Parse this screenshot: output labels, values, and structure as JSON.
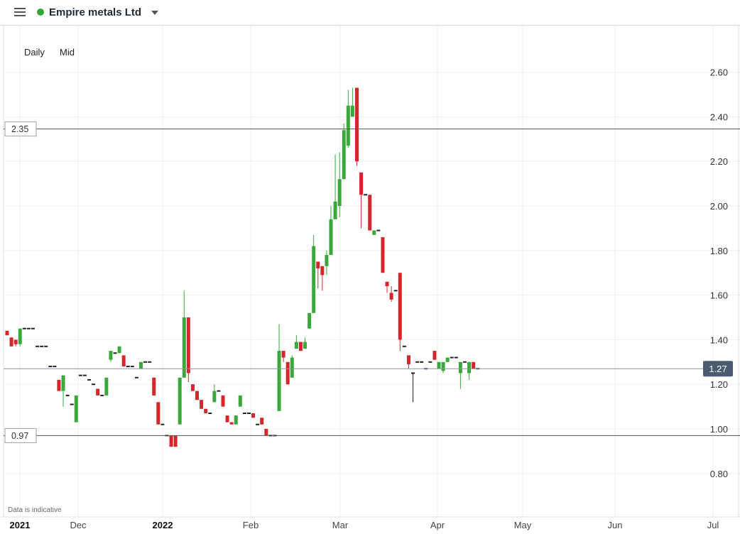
{
  "header": {
    "instrument_name": "Empire metals Ltd",
    "status_color": "#2fa832"
  },
  "controls": {
    "interval": "Daily",
    "price_type": "Mid"
  },
  "footer_note": "Data is indicative",
  "colors": {
    "up": "#3aa83b",
    "down": "#d6262b",
    "current_price_bg": "#4a5b70"
  },
  "chart_data": {
    "type": "candlestick",
    "y_axis": {
      "range": [
        0.63,
        2.76
      ],
      "ticks": [
        "0.80",
        "1.00",
        "1.20",
        "1.40",
        "1.60",
        "1.80",
        "2.00",
        "2.20",
        "2.40",
        "2.60"
      ]
    },
    "x_axis": {
      "ticks": [
        "2021",
        "Dec",
        "2022",
        "Feb",
        "Mar",
        "Apr",
        "May",
        "Jun",
        "Jul"
      ]
    },
    "grid": true,
    "horizontal_lines": [
      {
        "label": "2.35",
        "value": 2.345
      },
      {
        "label": "0.97",
        "value": 0.97
      }
    ],
    "current_price": {
      "label": "1.27",
      "value": 1.27
    },
    "candles": [
      [
        1.44,
        1.42,
        1.44,
        1.42
      ],
      [
        1.41,
        1.37,
        1.41,
        1.37
      ],
      [
        1.4,
        1.38,
        1.4,
        1.37
      ],
      [
        1.38,
        1.45,
        1.45,
        1.37
      ],
      [
        1.45,
        1.45,
        1.45,
        1.45
      ],
      [
        1.45,
        1.45,
        1.45,
        1.45
      ],
      [
        1.45,
        1.45,
        1.45,
        1.45
      ],
      [
        1.37,
        1.37,
        1.37,
        1.37
      ],
      [
        1.37,
        1.37,
        1.37,
        1.37
      ],
      [
        1.37,
        1.37,
        1.37,
        1.37
      ],
      [
        1.28,
        1.28,
        1.28,
        1.28
      ],
      [
        1.28,
        1.28,
        1.28,
        1.28
      ],
      [
        1.22,
        1.17,
        1.22,
        1.17
      ],
      [
        1.17,
        1.24,
        1.24,
        1.1
      ],
      [
        1.15,
        1.15,
        1.15,
        1.15
      ],
      [
        1.11,
        1.11,
        1.11,
        1.11
      ],
      [
        1.03,
        1.15,
        1.15,
        1.03
      ],
      [
        1.24,
        1.24,
        1.24,
        1.24
      ],
      [
        1.24,
        1.24,
        1.24,
        1.24
      ],
      [
        1.22,
        1.22,
        1.22,
        1.22
      ],
      [
        1.2,
        1.2,
        1.2,
        1.2
      ],
      [
        1.18,
        1.15,
        1.18,
        1.15
      ],
      [
        1.15,
        1.15,
        1.15,
        1.15
      ],
      [
        1.15,
        1.23,
        1.23,
        1.15
      ],
      [
        1.31,
        1.35,
        1.35,
        1.3
      ],
      [
        1.34,
        1.34,
        1.34,
        1.34
      ],
      [
        1.34,
        1.37,
        1.37,
        1.34
      ],
      [
        1.33,
        1.28,
        1.33,
        1.28
      ],
      [
        1.28,
        1.28,
        1.28,
        1.28
      ],
      [
        1.28,
        1.28,
        1.28,
        1.28
      ],
      [
        1.23,
        1.23,
        1.23,
        1.23
      ],
      [
        1.27,
        1.3,
        1.3,
        1.27
      ],
      [
        1.3,
        1.3,
        1.3,
        1.3
      ],
      [
        1.3,
        1.3,
        1.3,
        1.3
      ],
      [
        1.23,
        1.15,
        1.23,
        1.15
      ],
      [
        1.12,
        1.02,
        1.12,
        1.02
      ],
      [
        1.02,
        1.02,
        1.02,
        1.02
      ],
      [
        0.97,
        0.97,
        0.97,
        0.97
      ],
      [
        0.97,
        0.92,
        0.97,
        0.92
      ],
      [
        0.97,
        0.92,
        0.97,
        0.92
      ],
      [
        1.02,
        1.23,
        1.23,
        1.02
      ],
      [
        1.23,
        1.5,
        1.62,
        1.23
      ],
      [
        1.5,
        1.25,
        1.5,
        1.21
      ],
      [
        1.2,
        1.17,
        1.2,
        1.17
      ],
      [
        1.17,
        1.13,
        1.17,
        1.13
      ],
      [
        1.13,
        1.09,
        1.13,
        1.09
      ],
      [
        1.09,
        1.07,
        1.09,
        1.07
      ],
      [
        1.07,
        1.07,
        1.07,
        1.07
      ],
      [
        1.12,
        1.17,
        1.2,
        1.12
      ],
      [
        1.17,
        1.17,
        1.17,
        1.17
      ],
      [
        1.15,
        1.1,
        1.15,
        1.1
      ],
      [
        1.06,
        1.03,
        1.06,
        1.03
      ],
      [
        1.03,
        1.02,
        1.03,
        1.02
      ],
      [
        1.02,
        1.06,
        1.06,
        1.02
      ],
      [
        1.1,
        1.15,
        1.15,
        1.1
      ],
      [
        1.07,
        1.07,
        1.07,
        1.07
      ],
      [
        1.07,
        1.07,
        1.07,
        1.07
      ],
      [
        1.07,
        1.05,
        1.07,
        1.05
      ],
      [
        1.02,
        1.02,
        1.02,
        1.02
      ],
      [
        1.05,
        1.02,
        1.05,
        1.02
      ],
      [
        1.0,
        0.97,
        1.0,
        0.97
      ],
      [
        0.97,
        0.97,
        0.97,
        0.97
      ],
      [
        0.97,
        0.97,
        0.97,
        0.97
      ],
      [
        1.08,
        1.35,
        1.47,
        1.08
      ],
      [
        1.35,
        1.32,
        1.35,
        1.3
      ],
      [
        1.3,
        1.2,
        1.3,
        1.2
      ],
      [
        1.23,
        1.32,
        1.33,
        1.23
      ],
      [
        1.36,
        1.39,
        1.42,
        1.36
      ],
      [
        1.39,
        1.35,
        1.39,
        1.35
      ],
      [
        1.36,
        1.39,
        1.41,
        1.36
      ],
      [
        1.45,
        1.52,
        1.52,
        1.45
      ],
      [
        1.52,
        1.82,
        1.87,
        1.52
      ],
      [
        1.75,
        1.72,
        1.75,
        1.63
      ],
      [
        1.73,
        1.69,
        1.73,
        1.62
      ],
      [
        1.73,
        1.78,
        1.8,
        1.69
      ],
      [
        1.78,
        1.94,
        2.0,
        1.78
      ],
      [
        1.94,
        2.02,
        2.23,
        1.95
      ],
      [
        2.0,
        2.12,
        2.24,
        1.95
      ],
      [
        2.12,
        2.34,
        2.37,
        2.12
      ],
      [
        2.27,
        2.45,
        2.52,
        2.26
      ],
      [
        2.4,
        2.45,
        2.53,
        2.4
      ],
      [
        2.53,
        2.2,
        2.53,
        2.18
      ],
      [
        2.15,
        2.05,
        2.15,
        1.9
      ],
      [
        2.05,
        2.05,
        2.05,
        2.05
      ],
      [
        2.05,
        1.89,
        2.05,
        1.89
      ],
      [
        1.87,
        1.89,
        1.89,
        1.87
      ],
      [
        1.89,
        1.89,
        1.89,
        1.89
      ],
      [
        1.86,
        1.7,
        1.86,
        1.7
      ],
      [
        1.66,
        1.64,
        1.66,
        1.61
      ],
      [
        1.61,
        1.58,
        1.64,
        1.57
      ],
      [
        1.62,
        1.62,
        1.62,
        1.62
      ],
      [
        1.7,
        1.4,
        1.7,
        1.35
      ],
      [
        1.37,
        1.37,
        1.37,
        1.37
      ],
      [
        1.33,
        1.29,
        1.33,
        1.27
      ],
      [
        1.25,
        1.25,
        1.25,
        1.12
      ],
      [
        1.3,
        1.3,
        1.3,
        1.3
      ],
      [
        1.3,
        1.3,
        1.3,
        1.3
      ],
      [
        1.27,
        1.27,
        1.27,
        1.27
      ],
      [
        1.3,
        1.3,
        1.3,
        1.3
      ],
      [
        1.35,
        1.31,
        1.35,
        1.31
      ],
      [
        1.27,
        1.3,
        1.3,
        1.27
      ],
      [
        1.26,
        1.3,
        1.3,
        1.25
      ],
      [
        1.3,
        1.32,
        1.32,
        1.3
      ],
      [
        1.32,
        1.32,
        1.32,
        1.32
      ],
      [
        1.32,
        1.32,
        1.32,
        1.32
      ],
      [
        1.25,
        1.3,
        1.3,
        1.18
      ],
      [
        1.3,
        1.3,
        1.3,
        1.3
      ],
      [
        1.25,
        1.3,
        1.3,
        1.22
      ],
      [
        1.3,
        1.27,
        1.3,
        1.27
      ],
      [
        1.27,
        1.27,
        1.27,
        1.27
      ]
    ]
  }
}
